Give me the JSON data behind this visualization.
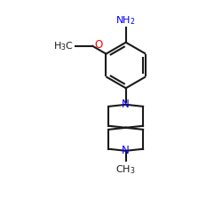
{
  "background": "#ffffff",
  "bond_color": "#1a1a1a",
  "bond_lw": 1.5,
  "N_color": "#0000ff",
  "O_color": "#ff0000",
  "C_color": "#1a1a1a",
  "figsize": [
    2.5,
    2.5
  ],
  "dpi": 100,
  "xlim": [
    0.05,
    0.95
  ],
  "ylim": [
    0.02,
    0.98
  ]
}
